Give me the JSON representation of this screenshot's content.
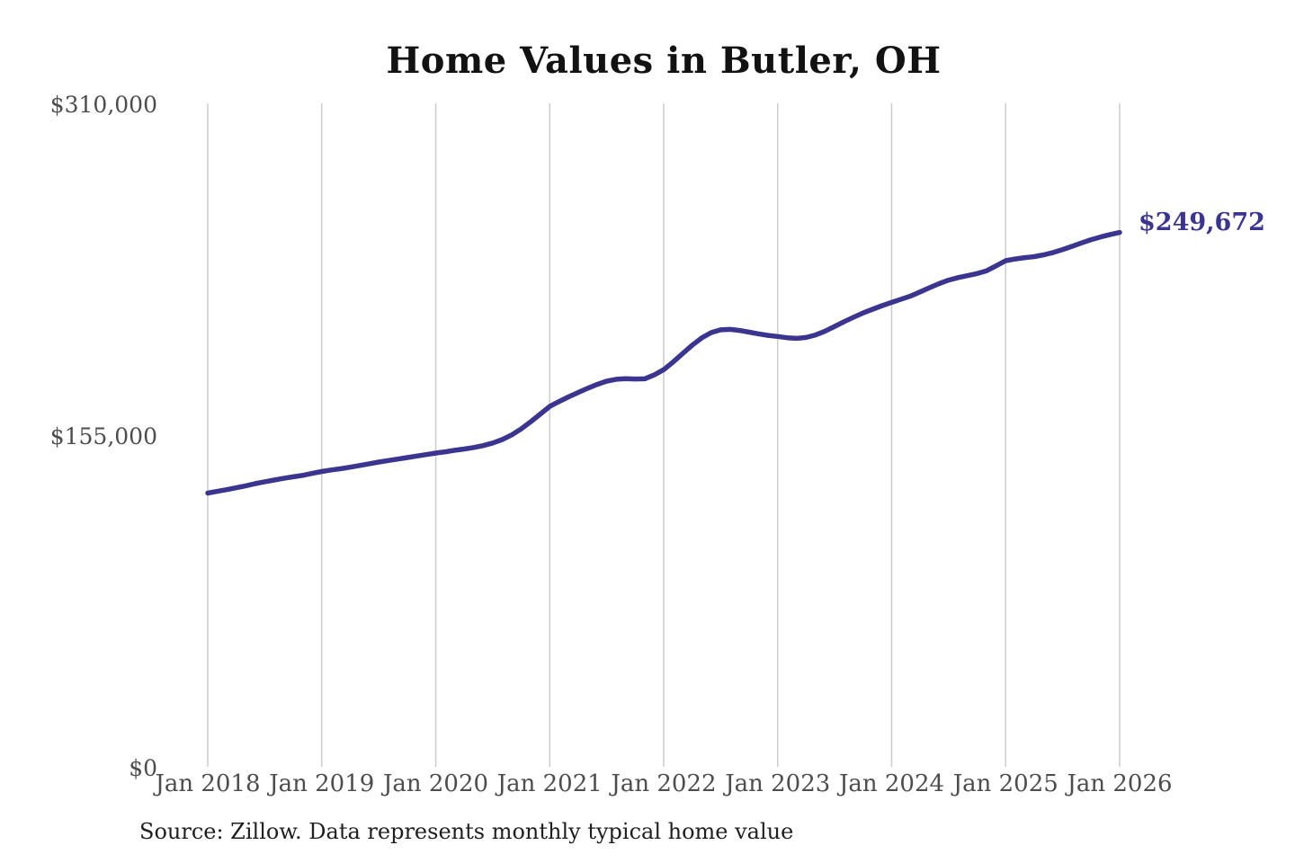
{
  "title": "Home Values in Butler, OH",
  "annotation": {
    "latest_value_label": "$249,672"
  },
  "source_note": "Source: Zillow. Data represents monthly typical home value",
  "colors": {
    "line": "#3b3590",
    "annotation": "#3b3590",
    "grid": "#cccccc",
    "tick_label": "#4d4d4d",
    "title": "#121212",
    "source": "#1f1f1f",
    "background": "#ffffff"
  },
  "chart_data": {
    "type": "line",
    "title": "Home Values in Butler, OH",
    "series_name": "Monthly typical home value",
    "frequency": "monthly",
    "x_start": "2018-01",
    "x_end": "2026-01",
    "x_tick_labels": [
      "Jan 2018",
      "Jan 2019",
      "Jan 2020",
      "Jan 2021",
      "Jan 2022",
      "Jan 2023",
      "Jan 2024",
      "Jan 2025",
      "Jan 2026"
    ],
    "y_ticks": [
      {
        "label": "$0",
        "value": 0
      },
      {
        "label": "$155,000",
        "value": 155000
      },
      {
        "label": "$310,000",
        "value": 310000
      }
    ],
    "ylim": [
      0,
      310000
    ],
    "grid": "vertical-only",
    "legend": "none",
    "latest_value": 249672,
    "values": [
      127900,
      128700,
      129500,
      130400,
      131300,
      132300,
      133200,
      134000,
      134800,
      135500,
      136200,
      137100,
      138000,
      138700,
      139300,
      140000,
      140800,
      141600,
      142400,
      143100,
      143800,
      144500,
      145200,
      145900,
      146600,
      147200,
      147900,
      148500,
      149200,
      150100,
      151300,
      152900,
      155100,
      157900,
      161200,
      164800,
      168400,
      170700,
      172900,
      174900,
      176900,
      178700,
      180200,
      181100,
      181400,
      181200,
      181300,
      183100,
      185600,
      189200,
      193100,
      197000,
      200400,
      202900,
      204200,
      204400,
      203900,
      203100,
      202300,
      201600,
      201100,
      200500,
      200200,
      200600,
      201800,
      203600,
      205800,
      208000,
      210100,
      212100,
      213800,
      215500,
      217000,
      218500,
      220000,
      221900,
      223900,
      225800,
      227400,
      228600,
      229500,
      230500,
      231800,
      234100,
      236500,
      237300,
      237900,
      238400,
      239200,
      240300,
      241700,
      243200,
      244800,
      246300,
      247600,
      248700,
      249672
    ]
  }
}
